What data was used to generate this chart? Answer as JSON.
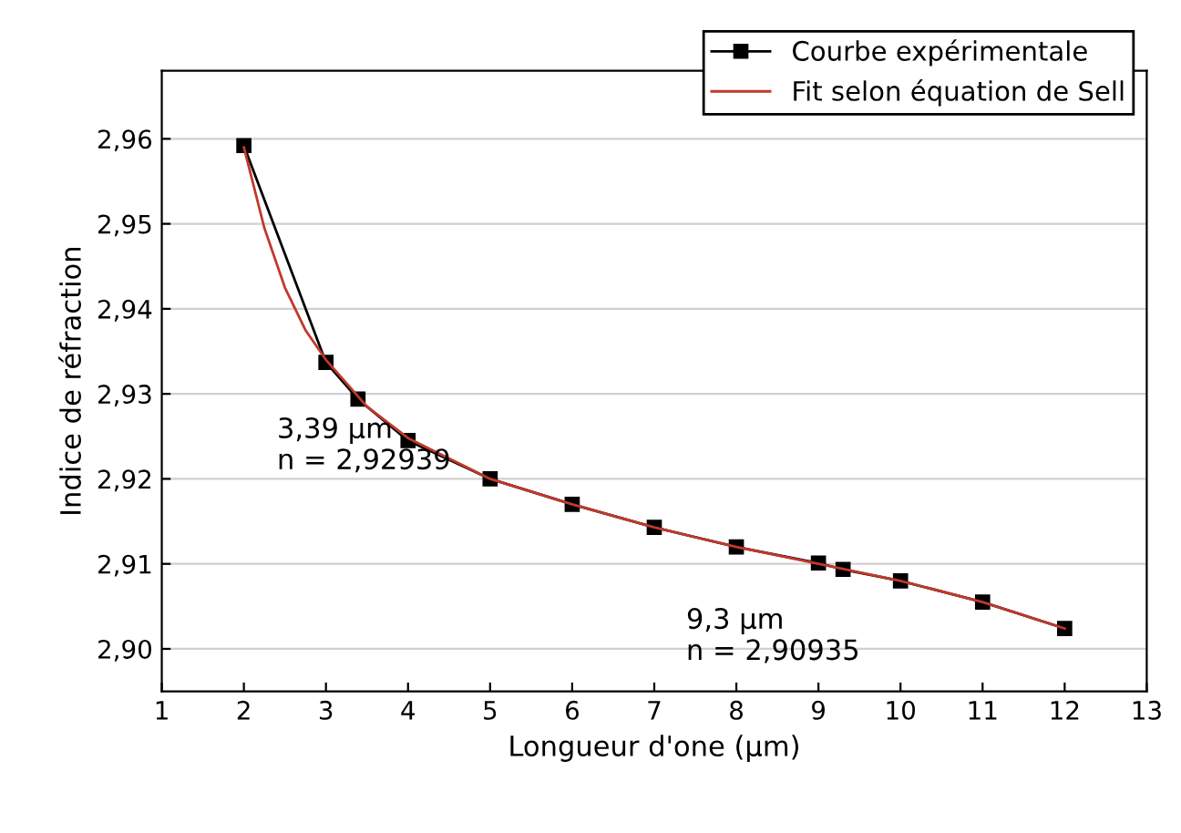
{
  "chart_data": {
    "type": "line",
    "xlabel": "Longueur d'one (µm)",
    "ylabel": "Indice de réfraction",
    "xlim": [
      1,
      13
    ],
    "xticks": [
      1,
      2,
      3,
      4,
      5,
      6,
      7,
      8,
      9,
      10,
      11,
      12,
      13
    ],
    "ylim": [
      2.895,
      2.968
    ],
    "yticks": [
      {
        "value": 2.9,
        "label": "2,90"
      },
      {
        "value": 2.91,
        "label": "2,91"
      },
      {
        "value": 2.92,
        "label": "2,92"
      },
      {
        "value": 2.93,
        "label": "2,93"
      },
      {
        "value": 2.94,
        "label": "2,94"
      },
      {
        "value": 2.95,
        "label": "2,95"
      },
      {
        "value": 2.96,
        "label": "2,96"
      }
    ],
    "grid": "y",
    "legend": "top right",
    "series": [
      {
        "name": "Courbe expérimentale",
        "color": "#000000",
        "marker": "square",
        "x": [
          2,
          3,
          3.39,
          4,
          5,
          6,
          7,
          8,
          9,
          9.3,
          10,
          11,
          12
        ],
        "values": [
          2.9592,
          2.9337,
          2.92939,
          2.9245,
          2.92,
          2.917,
          2.9143,
          2.912,
          2.9101,
          2.90935,
          2.908,
          2.9055,
          2.9024
        ]
      },
      {
        "name": "Fit selon équation de Sell",
        "color": "#c0392b",
        "marker": "none",
        "x": [
          2,
          2.25,
          2.5,
          2.75,
          3,
          3.5,
          4,
          5,
          6,
          7,
          8,
          9,
          10,
          11,
          12
        ],
        "values": [
          2.959,
          2.9495,
          2.9425,
          2.9375,
          2.934,
          2.9285,
          2.9248,
          2.92,
          2.917,
          2.9143,
          2.912,
          2.91,
          2.908,
          2.9055,
          2.9024
        ]
      }
    ],
    "annotations": [
      {
        "text": "3,39 µm\nn = 2,92939",
        "x": 3.39,
        "y": 2.92939
      },
      {
        "text": "9,3 µm\nn = 2,90935",
        "x": 9.3,
        "y": 2.90935
      }
    ]
  }
}
